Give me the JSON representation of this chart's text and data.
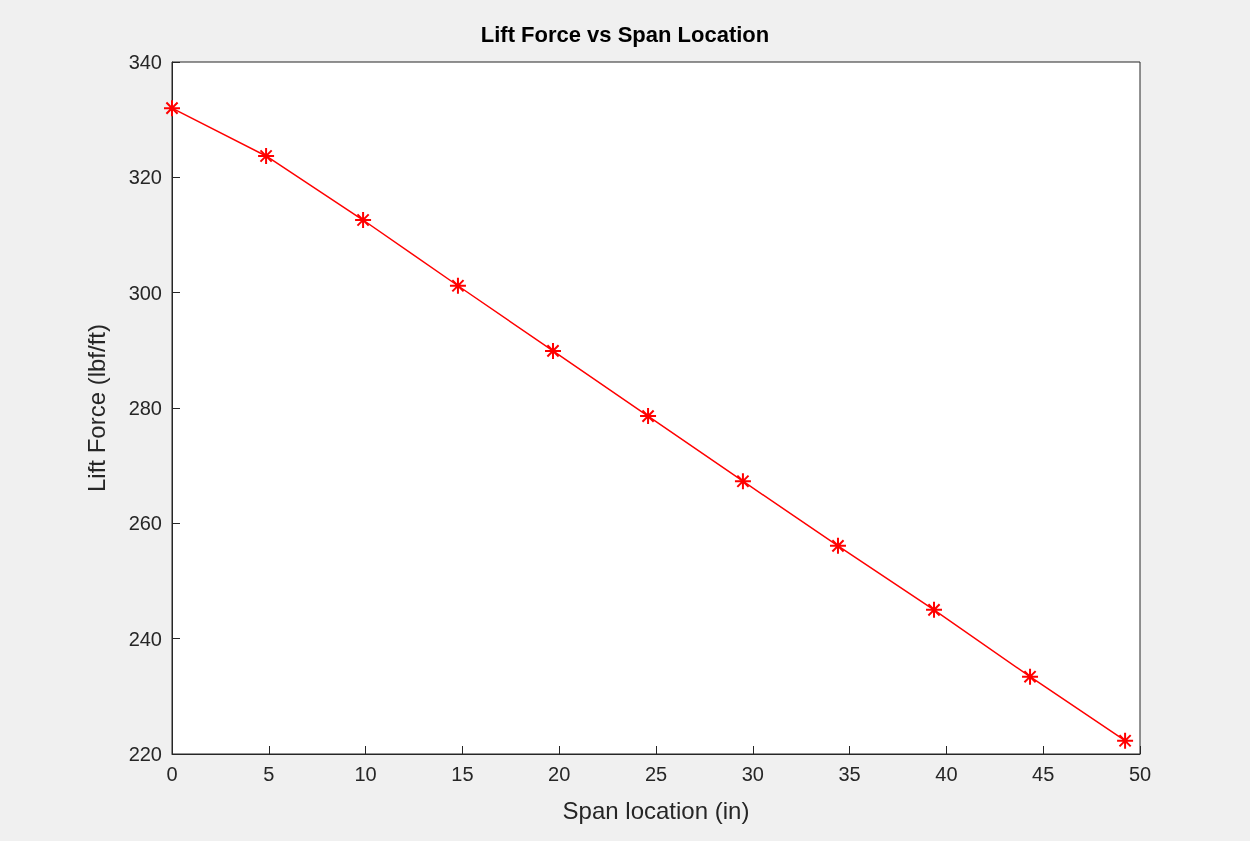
{
  "chart_data": {
    "type": "line",
    "title": "Lift Force vs Span Location",
    "xlabel": "Span location (in)",
    "ylabel": "Lift Force (lbf/ft)",
    "x": [
      0,
      4.86,
      9.87,
      14.77,
      19.68,
      24.59,
      29.49,
      34.4,
      39.36,
      44.32,
      49.23
    ],
    "series": [
      {
        "color": "#ff0000",
        "values": [
          332.0,
          323.7,
          312.6,
          301.2,
          289.9,
          278.6,
          267.3,
          256.1,
          245.0,
          233.4,
          222.3
        ]
      }
    ],
    "xlim": [
      0,
      50
    ],
    "xticks": [
      0,
      5,
      10,
      15,
      20,
      25,
      30,
      35,
      40,
      45,
      50
    ],
    "ylim": [
      220,
      340
    ],
    "yticks": [
      220,
      240,
      260,
      280,
      300,
      320,
      340
    ],
    "grid": false,
    "marker": "cross",
    "line_style": "solid"
  }
}
